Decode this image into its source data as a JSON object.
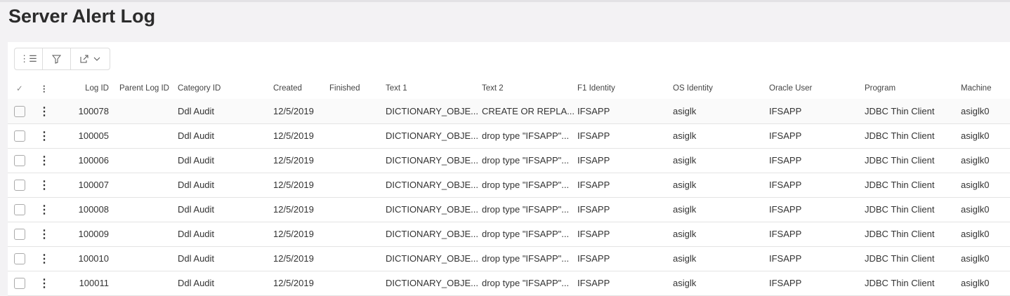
{
  "title": "Server Alert Log",
  "toolbar": {
    "icons": [
      "list-icon",
      "filter-icon",
      "export-icon"
    ]
  },
  "columns": [
    "Log ID",
    "Parent Log ID",
    "Category ID",
    "Created",
    "Finished",
    "Text 1",
    "Text 2",
    "F1 Identity",
    "OS Identity",
    "Oracle User",
    "Program",
    "Machine"
  ],
  "rows": [
    [
      "100078",
      "",
      "Ddl Audit",
      "12/5/2019",
      "",
      "DICTIONARY_OBJE...",
      "CREATE OR REPLA...",
      "IFSAPP",
      "asiglk",
      "IFSAPP",
      "JDBC Thin Client",
      "asiglk0"
    ],
    [
      "100005",
      "",
      "Ddl Audit",
      "12/5/2019",
      "",
      "DICTIONARY_OBJE...",
      "drop type \"IFSAPP\"...",
      "IFSAPP",
      "asiglk",
      "IFSAPP",
      "JDBC Thin Client",
      "asiglk0"
    ],
    [
      "100006",
      "",
      "Ddl Audit",
      "12/5/2019",
      "",
      "DICTIONARY_OBJE...",
      "drop type \"IFSAPP\"...",
      "IFSAPP",
      "asiglk",
      "IFSAPP",
      "JDBC Thin Client",
      "asiglk0"
    ],
    [
      "100007",
      "",
      "Ddl Audit",
      "12/5/2019",
      "",
      "DICTIONARY_OBJE...",
      "drop type \"IFSAPP\"...",
      "IFSAPP",
      "asiglk",
      "IFSAPP",
      "JDBC Thin Client",
      "asiglk0"
    ],
    [
      "100008",
      "",
      "Ddl Audit",
      "12/5/2019",
      "",
      "DICTIONARY_OBJE...",
      "drop type \"IFSAPP\"...",
      "IFSAPP",
      "asiglk",
      "IFSAPP",
      "JDBC Thin Client",
      "asiglk0"
    ],
    [
      "100009",
      "",
      "Ddl Audit",
      "12/5/2019",
      "",
      "DICTIONARY_OBJE...",
      "drop type \"IFSAPP\"...",
      "IFSAPP",
      "asiglk",
      "IFSAPP",
      "JDBC Thin Client",
      "asiglk0"
    ],
    [
      "100010",
      "",
      "Ddl Audit",
      "12/5/2019",
      "",
      "DICTIONARY_OBJE...",
      "drop type \"IFSAPP\"...",
      "IFSAPP",
      "asiglk",
      "IFSAPP",
      "JDBC Thin Client",
      "asiglk0"
    ],
    [
      "100011",
      "",
      "Ddl Audit",
      "12/5/2019",
      "",
      "DICTIONARY_OBJE...",
      "drop type \"IFSAPP\"...",
      "IFSAPP",
      "asiglk",
      "IFSAPP",
      "JDBC Thin Client",
      "asiglk0"
    ]
  ]
}
